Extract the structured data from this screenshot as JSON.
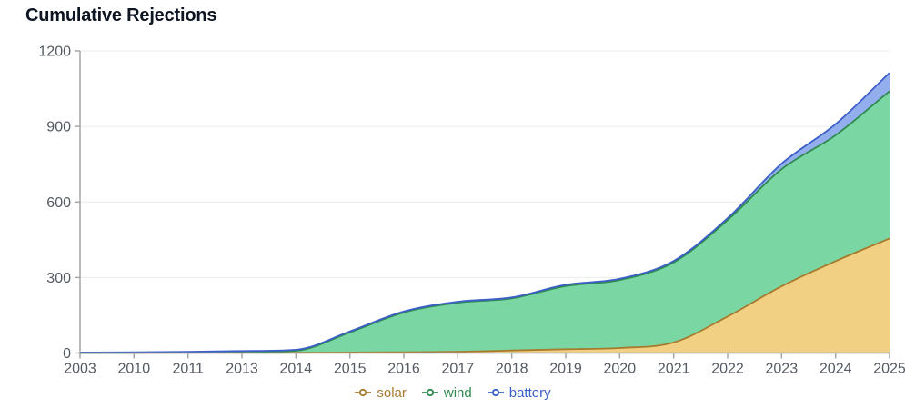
{
  "header": {
    "title": "Cumulative Rejections"
  },
  "colors": {
    "title": "#0f1623",
    "axis": "#a6a6a6",
    "tick_label": "#555a63",
    "grid": "#ececec",
    "background": "#ffffff"
  },
  "chart_data": {
    "type": "area",
    "stacked": true,
    "title": "Cumulative Rejections",
    "xlabel": "",
    "ylabel": "",
    "categories": [
      "2003",
      "2010",
      "2011",
      "2013",
      "2014",
      "2015",
      "2016",
      "2017",
      "2018",
      "2019",
      "2020",
      "2021",
      "2022",
      "2023",
      "2024",
      "2025"
    ],
    "series": [
      {
        "name": "solar",
        "line_color": "#a87a2e",
        "fill_color": "#f1d083",
        "values": [
          0,
          0,
          1,
          1,
          1,
          2,
          3,
          5,
          10,
          15,
          20,
          42,
          145,
          265,
          365,
          455
        ]
      },
      {
        "name": "wind",
        "line_color": "#2f8a50",
        "fill_color": "#7ad6a2",
        "values": [
          0,
          1,
          1,
          3,
          8,
          80,
          158,
          195,
          207,
          251,
          270,
          318,
          383,
          465,
          500,
          585
        ]
      },
      {
        "name": "battery",
        "line_color": "#3c5ec8",
        "fill_color": "#92aeec",
        "values": [
          2,
          2,
          3,
          4,
          4,
          4,
          4,
          4,
          4,
          5,
          5,
          6,
          8,
          22,
          44,
          73
        ]
      }
    ],
    "yticks": [
      0,
      300,
      600,
      900,
      1200
    ],
    "ylim": [
      0,
      1200
    ],
    "grid": true,
    "legend_position": "bottom"
  }
}
